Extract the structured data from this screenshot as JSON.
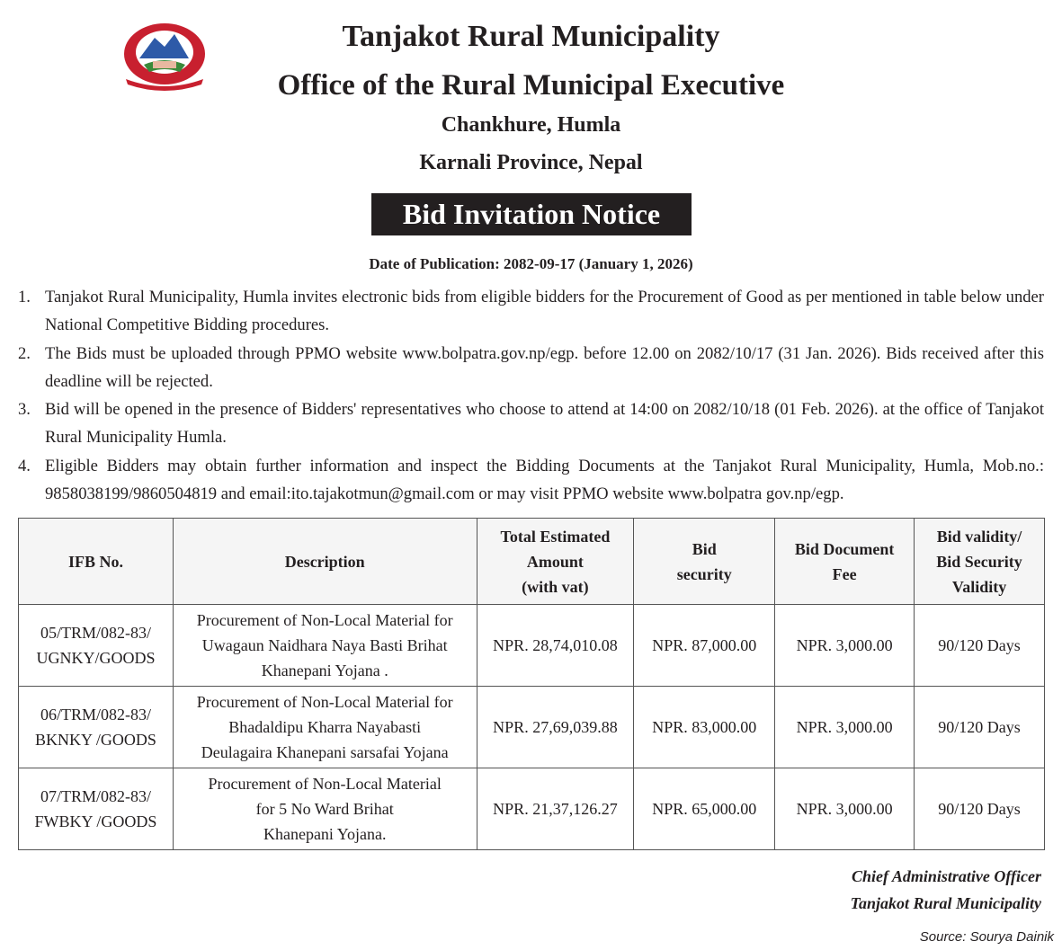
{
  "header": {
    "title": "Tanjakot Rural Municipality",
    "subtitle": "Office of the Rural Municipal Executive",
    "address_1": "Chankhure, Humla",
    "address_2": "Karnali Province, Nepal",
    "notice_title": "Bid Invitation Notice",
    "date_of_publication": "Date of Publication: 2082-09-17 (January 1, 2026)"
  },
  "items": [
    {
      "number": "1.",
      "text": "Tanjakot Rural Municipality, Humla invites electronic bids from eligible bidders for the Procurement of Good as per mentioned in table below under National Competitive Bidding procedures."
    },
    {
      "number": "2.",
      "text": "The Bids must be uploaded through PPMO website www.bolpatra.gov.np/egp. before 12.00 on 2082/10/17 (31 Jan. 2026). Bids received after this deadline will be rejected."
    },
    {
      "number": "3.",
      "text": "Bid will be opened in the presence of Bidders' representatives who choose to attend at 14:00 on 2082/10/18 (01 Feb. 2026). at the office of Tanjakot Rural Municipality Humla."
    },
    {
      "number": "4.",
      "text": "Eligible Bidders may obtain further information and inspect the Bidding Documents at the Tanjakot Rural Municipality, Humla, Mob.no.: 9858038199/9860504819 and email:ito.tajakotmun@gmail.com or may visit PPMO website www.bolpatra gov.np/egp."
    }
  ],
  "table": {
    "headers": [
      [
        "IFB No."
      ],
      [
        "Description"
      ],
      [
        "Total Estimated",
        "Amount",
        "(with vat)"
      ],
      [
        "Bid",
        "security"
      ],
      [
        "Bid Document",
        "Fee"
      ],
      [
        "Bid validity/",
        "Bid Security",
        "Validity"
      ]
    ],
    "rows": [
      [
        [
          "05/TRM/082-83/",
          "UGNKY/GOODS"
        ],
        [
          "Procurement of Non-Local Material for",
          "Uwagaun Naidhara Naya Basti Brihat",
          "Khanepani Yojana ."
        ],
        [
          "NPR. 28,74,010.08"
        ],
        [
          "NPR. 87,000.00"
        ],
        [
          "NPR. 3,000.00"
        ],
        [
          "90/120 Days"
        ]
      ],
      [
        [
          "06/TRM/082-83/",
          "BKNKY /GOODS"
        ],
        [
          "Procurement of Non-Local Material for",
          "Bhadaldipu Kharra Nayabasti",
          "Deulagaira Khanepani sarsafai Yojana"
        ],
        [
          "NPR. 27,69,039.88"
        ],
        [
          "NPR. 83,000.00"
        ],
        [
          "NPR. 3,000.00"
        ],
        [
          "90/120 Days"
        ]
      ],
      [
        [
          "07/TRM/082-83/",
          "FWBKY /GOODS"
        ],
        [
          "Procurement of Non-Local Material",
          "for 5 No Ward Brihat",
          "Khanepani Yojana."
        ],
        [
          "NPR. 21,37,126.27"
        ],
        [
          "NPR. 65,000.00"
        ],
        [
          "NPR. 3,000.00"
        ],
        [
          "90/120 Days"
        ]
      ]
    ]
  },
  "signature": {
    "name": "Chief Administrative Officer",
    "organization": "Tanjakot Rural Municipality"
  },
  "source": "Source: Sourya Dainik"
}
